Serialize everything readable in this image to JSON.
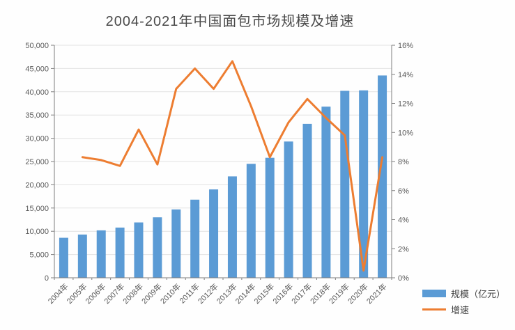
{
  "header": {
    "title": "2004-2021年中国面包市场规模及增速"
  },
  "colors": {
    "bar": "#5B9BD5",
    "line": "#ED7D31",
    "grid": "#E2E2E2",
    "axis": "#7F7F7F",
    "tick_text": "#595959",
    "title_text": "#4A4A4A"
  },
  "legend": {
    "items": [
      {
        "label": "规模（亿元）",
        "swatch": "bar",
        "color": "#5B9BD5"
      },
      {
        "label": "增速",
        "swatch": "line",
        "color": "#ED7D31"
      }
    ]
  },
  "chart_data": {
    "type": "combo-bar-line",
    "title": "2004-2021年中国面包市场规模及增速",
    "categories": [
      "2004年",
      "2005年",
      "2006年",
      "2007年",
      "2008年",
      "2009年",
      "2010年",
      "2011年",
      "2012年",
      "2013年",
      "2014年",
      "2015年",
      "2016年",
      "2017年",
      "2018年",
      "2019年",
      "2020年",
      "2021年"
    ],
    "series": [
      {
        "name": "规模（亿元）",
        "type": "bar",
        "y_axis": "left",
        "color": "#5B9BD5",
        "values": [
          8600,
          9300,
          10200,
          10800,
          11900,
          13000,
          14700,
          16800,
          19000,
          21800,
          24500,
          25800,
          29300,
          33100,
          36800,
          40200,
          40300,
          43500
        ]
      },
      {
        "name": "增速",
        "type": "line",
        "y_axis": "right",
        "color": "#ED7D31",
        "values": [
          null,
          8.3,
          8.1,
          7.7,
          10.2,
          7.8,
          13.0,
          14.4,
          13.0,
          14.9,
          11.8,
          8.3,
          10.7,
          12.3,
          11.0,
          9.8,
          0.5,
          8.3
        ]
      }
    ],
    "left_axis": {
      "min": 0,
      "max": 50000,
      "step": 5000,
      "labels": [
        "0",
        "5,000",
        "10,000",
        "15,000",
        "20,000",
        "25,000",
        "30,000",
        "35,000",
        "40,000",
        "45,000",
        "50,000"
      ],
      "values": [
        0,
        5000,
        10000,
        15000,
        20000,
        25000,
        30000,
        35000,
        40000,
        45000,
        50000
      ]
    },
    "right_axis": {
      "min": 0,
      "max": 16,
      "step": 2,
      "labels": [
        "0%",
        "2%",
        "4%",
        "6%",
        "8%",
        "10%",
        "12%",
        "14%",
        "16%"
      ],
      "values": [
        0,
        2,
        4,
        6,
        8,
        10,
        12,
        14,
        16
      ]
    },
    "grid": true,
    "legend_position": "bottom-right"
  }
}
